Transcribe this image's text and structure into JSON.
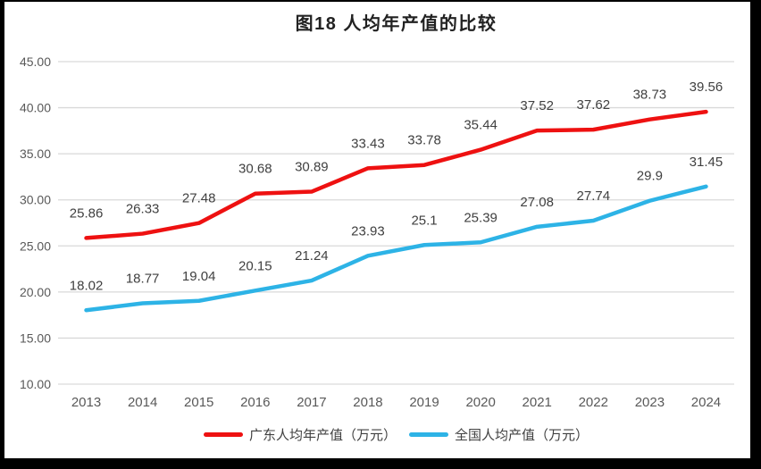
{
  "window": {
    "frame_color": "#000000",
    "background_color": "#ffffff"
  },
  "chart_data": {
    "type": "line",
    "title": "图18 人均年产值的比较",
    "categories": [
      "2013",
      "2014",
      "2015",
      "2016",
      "2017",
      "2018",
      "2019",
      "2020",
      "2021",
      "2022",
      "2023",
      "2024"
    ],
    "series": [
      {
        "name": "广东人均年产值（万元）",
        "color": "#ee1111",
        "values": [
          25.86,
          26.33,
          27.48,
          30.68,
          30.89,
          33.43,
          33.78,
          35.44,
          37.52,
          37.62,
          38.73,
          39.56
        ],
        "labels": [
          "25.86",
          "26.33",
          "27.48",
          "30.68",
          "30.89",
          "33.43",
          "33.78",
          "35.44",
          "37.52",
          "37.62",
          "38.73",
          "39.56"
        ]
      },
      {
        "name": "全国人均产值（万元）",
        "color": "#2db3e6",
        "values": [
          18.02,
          18.77,
          19.04,
          20.15,
          21.24,
          23.93,
          25.1,
          25.39,
          27.08,
          27.74,
          29.9,
          31.45
        ],
        "labels": [
          "18.02",
          "18.77",
          "19.04",
          "20.15",
          "21.24",
          "23.93",
          "25.1",
          "25.39",
          "27.08",
          "27.74",
          "29.9",
          "31.45"
        ]
      }
    ],
    "xlabel": "",
    "ylabel": "",
    "ylim": [
      10,
      45
    ],
    "ytick_step": 5,
    "ytick_labels": [
      "10.00",
      "15.00",
      "20.00",
      "25.00",
      "30.00",
      "35.00",
      "40.00",
      "45.00"
    ],
    "grid": true,
    "gridline_color": "#d9d9d9",
    "axis_label_color": "#595959",
    "data_label_color": "#404040",
    "legend_position": "bottom"
  }
}
